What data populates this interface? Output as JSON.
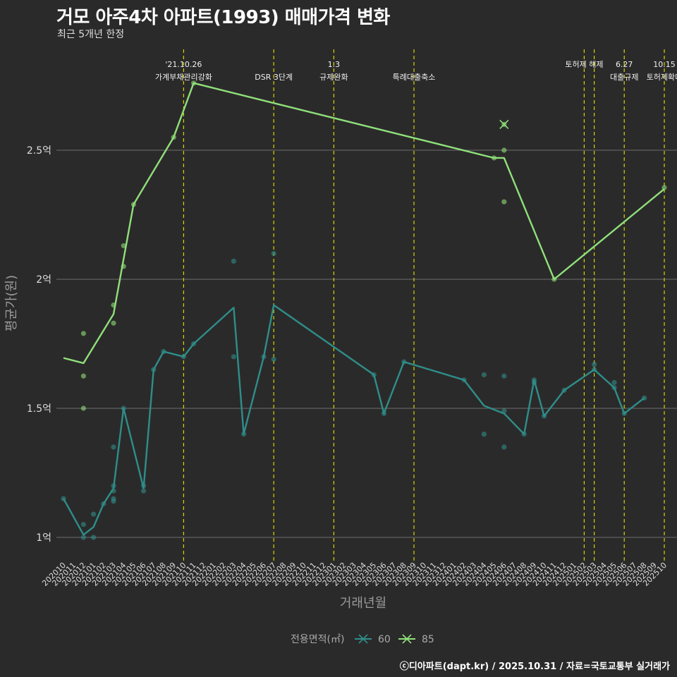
{
  "chart_data": {
    "type": "line",
    "title": "거모 아주4차 아파트(1993) 매매가격 변화",
    "subtitle": "최근 5개년 한정",
    "xlabel": "거래년월",
    "ylabel": "평균가(원)",
    "y_unit": "억",
    "ylim": [
      0.92,
      2.85
    ],
    "y_ticks": [
      {
        "value": 1.0,
        "label": "1억"
      },
      {
        "value": 1.5,
        "label": "1.5억"
      },
      {
        "value": 2.0,
        "label": "2억"
      },
      {
        "value": 2.5,
        "label": "2.5억"
      }
    ],
    "categories": [
      "202010",
      "202011",
      "202012",
      "202101",
      "202102",
      "202103",
      "202104",
      "202105",
      "202106",
      "202107",
      "202108",
      "202109",
      "202110",
      "202111",
      "202112",
      "202201",
      "202202",
      "202203",
      "202204",
      "202205",
      "202206",
      "202207",
      "202208",
      "202209",
      "202210",
      "202211",
      "202212",
      "202301",
      "202302",
      "202303",
      "202304",
      "202305",
      "202306",
      "202307",
      "202308",
      "202309",
      "202310",
      "202311",
      "202312",
      "202401",
      "202402",
      "202403",
      "202404",
      "202405",
      "202406",
      "202407",
      "202408",
      "202409",
      "202410",
      "202411",
      "202412",
      "202501",
      "202502",
      "202503",
      "202504",
      "202505",
      "202506",
      "202507",
      "202508",
      "202509",
      "202510"
    ],
    "series": [
      {
        "name": "60",
        "color": "#2e8e8a",
        "line": [
          [
            "202010",
            1.15
          ],
          [
            "202012",
            1.01
          ],
          [
            "202101",
            1.04
          ],
          [
            "202102",
            1.13
          ],
          [
            "202103",
            1.19
          ],
          [
            "202104",
            1.5
          ],
          [
            "202106",
            1.19
          ],
          [
            "202107",
            1.65
          ],
          [
            "202108",
            1.72
          ],
          [
            "202110",
            1.7
          ],
          [
            "202111",
            1.75
          ],
          [
            "202203",
            1.89
          ],
          [
            "202204",
            1.4
          ],
          [
            "202206",
            1.7
          ],
          [
            "202207",
            1.9
          ],
          [
            "202305",
            1.63
          ],
          [
            "202306",
            1.48
          ],
          [
            "202308",
            1.68
          ],
          [
            "202402",
            1.61
          ],
          [
            "202404",
            1.51
          ],
          [
            "202406",
            1.48
          ],
          [
            "202408",
            1.4
          ],
          [
            "202409",
            1.61
          ],
          [
            "202410",
            1.47
          ],
          [
            "202412",
            1.57
          ],
          [
            "202503",
            1.65
          ],
          [
            "202505",
            1.58
          ],
          [
            "202506",
            1.48
          ],
          [
            "202508",
            1.54
          ]
        ],
        "points": [
          [
            "202010",
            1.15
          ],
          [
            "202012",
            1.05
          ],
          [
            "202012",
            1.0
          ],
          [
            "202101",
            1.09
          ],
          [
            "202101",
            1.0
          ],
          [
            "202102",
            1.13
          ],
          [
            "202103",
            1.35
          ],
          [
            "202103",
            1.2
          ],
          [
            "202103",
            1.18
          ],
          [
            "202103",
            1.15
          ],
          [
            "202103",
            1.14
          ],
          [
            "202104",
            1.5
          ],
          [
            "202106",
            1.2
          ],
          [
            "202106",
            1.18
          ],
          [
            "202107",
            1.65
          ],
          [
            "202108",
            1.72
          ],
          [
            "202110",
            1.7
          ],
          [
            "202111",
            1.75
          ],
          [
            "202203",
            2.07
          ],
          [
            "202203",
            1.7
          ],
          [
            "202204",
            1.4
          ],
          [
            "202206",
            1.7
          ],
          [
            "202207",
            2.1
          ],
          [
            "202207",
            1.69
          ],
          [
            "202305",
            1.63
          ],
          [
            "202306",
            1.48
          ],
          [
            "202308",
            1.68
          ],
          [
            "202402",
            1.61
          ],
          [
            "202404",
            1.63
          ],
          [
            "202404",
            1.4
          ],
          [
            "202406",
            1.625
          ],
          [
            "202406",
            1.49
          ],
          [
            "202406",
            1.35
          ],
          [
            "202408",
            1.4
          ],
          [
            "202409",
            1.61
          ],
          [
            "202409",
            1.6
          ],
          [
            "202410",
            1.47
          ],
          [
            "202412",
            1.57
          ],
          [
            "202503",
            1.67
          ],
          [
            "202503",
            1.65
          ],
          [
            "202505",
            1.6
          ],
          [
            "202505",
            1.58
          ],
          [
            "202506",
            1.48
          ],
          [
            "202508",
            1.54
          ]
        ]
      },
      {
        "name": "85",
        "color": "#8fe07a",
        "line": [
          [
            "202010",
            1.695
          ],
          [
            "202012",
            1.675
          ],
          [
            "202103",
            1.865
          ],
          [
            "202105",
            2.29
          ],
          [
            "202109",
            2.55
          ],
          [
            "202111",
            2.76
          ],
          [
            "202405",
            2.47
          ],
          [
            "202406",
            2.47
          ],
          [
            "202411",
            2.0
          ],
          [
            "202510",
            2.35
          ]
        ],
        "points": [
          [
            "202012",
            1.79
          ],
          [
            "202012",
            1.625
          ],
          [
            "202012",
            1.5
          ],
          [
            "202103",
            1.9
          ],
          [
            "202103",
            1.83
          ],
          [
            "202104",
            2.13
          ],
          [
            "202104",
            2.05
          ],
          [
            "202105",
            2.29
          ],
          [
            "202109",
            2.55
          ],
          [
            "202111",
            2.76
          ],
          [
            "202405",
            2.47
          ],
          [
            "202406",
            2.6
          ],
          [
            "202406",
            2.5
          ],
          [
            "202406",
            2.3
          ],
          [
            "202411",
            2.0
          ],
          [
            "202510",
            2.355
          ]
        ],
        "highlight": [
          "202406",
          2.6
        ]
      }
    ],
    "events": [
      {
        "x": "202110",
        "lines": [
          "'21.10.26",
          "가계부채관리강화"
        ]
      },
      {
        "x": "202207",
        "lines": [
          "",
          "DSR 3단계"
        ]
      },
      {
        "x": "202301",
        "lines": [
          "1.3",
          "규제완화"
        ]
      },
      {
        "x": "202309",
        "lines": [
          "",
          "특례대출축소"
        ]
      },
      {
        "x": "202502",
        "lines": [
          "토허제 해제",
          ""
        ]
      },
      {
        "x": "202503",
        "lines": [
          "",
          ""
        ]
      },
      {
        "x": "202506",
        "lines": [
          "6.27",
          "대출규제"
        ]
      },
      {
        "x": "202510",
        "lines": [
          "10.15",
          "토허제확대"
        ]
      }
    ],
    "legend": {
      "title": "전용면적(㎡)",
      "position": "bottom"
    },
    "grid": true
  },
  "footer": "ⓒ디아파트(dapt.kr) / 2025.10.31 / 자료=국토교통부 실거래가"
}
